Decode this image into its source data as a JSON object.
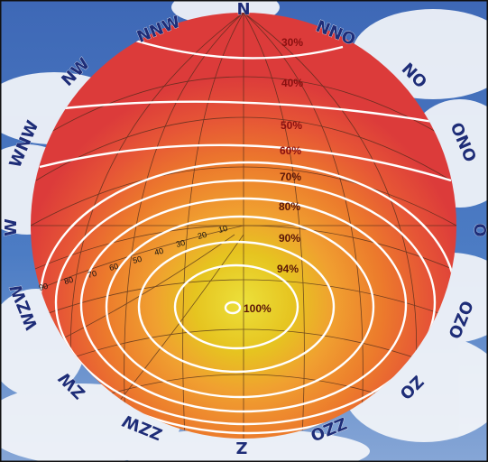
{
  "directions": {
    "n": "N",
    "nno": "NNO",
    "no": "NO",
    "ono": "ONO",
    "o": "O",
    "ozo": "OZO",
    "zo": "ZO",
    "zzo": "ZZO",
    "z": "Z",
    "zzw": "ZZW",
    "zw": "ZW",
    "wzw": "WZW",
    "w": "W",
    "wnw": "WNW",
    "nw": "NW",
    "nnw": "NNW"
  },
  "efficiency_labels": [
    "30%",
    "40%",
    "50%",
    "60%",
    "70%",
    "80%",
    "90%",
    "94%",
    "100%"
  ],
  "altitude_labels": [
    "90",
    "80",
    "70",
    "60",
    "50",
    "40",
    "30",
    "20",
    "10"
  ],
  "colors": {
    "outer": "#e0403a",
    "middle": "#ec7a2c",
    "inner": "#f0a830",
    "core": "#e6d820",
    "contour": "#ffffff",
    "grid": "#5a2a18",
    "sky": "#3a64b4"
  }
}
